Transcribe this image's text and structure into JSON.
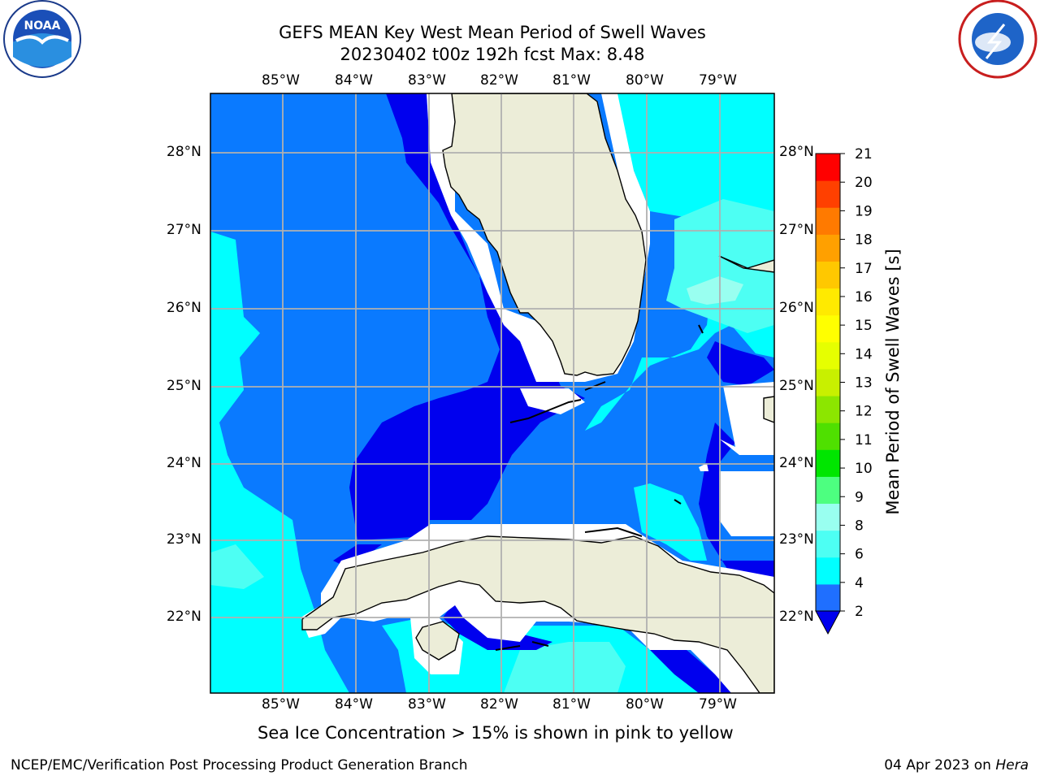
{
  "title_line1": "GEFS MEAN Key West Mean Period of Swell Waves",
  "title_line2": "20230402 t00z 192h fcst   Max: 8.48",
  "lon_labels": [
    "85°W",
    "84°W",
    "83°W",
    "82°W",
    "81°W",
    "80°W",
    "79°W"
  ],
  "lat_labels": [
    "28°N",
    "27°N",
    "26°N",
    "25°N",
    "24°N",
    "23°N",
    "22°N"
  ],
  "colorbar": {
    "label": "Mean Period of Swell Waves [s]",
    "ticks": [
      "21",
      "20",
      "19",
      "18",
      "17",
      "16",
      "15",
      "14",
      "13",
      "12",
      "11",
      "10",
      "9",
      "8",
      "6",
      "4",
      "2"
    ],
    "colors": [
      "#1f6fff",
      "#00ffff",
      "#4dfff3",
      "#99fff0",
      "#4dff80",
      "#00e600",
      "#4fe000",
      "#8ce600",
      "#c8f000",
      "#e6ff00",
      "#ffff00",
      "#ffea00",
      "#ffc800",
      "#ffa000",
      "#ff7a00",
      "#ff4000",
      "#ff0000"
    ]
  },
  "logos": {
    "left": "NOAA",
    "right": "NATIONAL WEATHER SERVICE"
  },
  "footer_note": "Sea Ice Concentration > 15% is shown in pink to yellow",
  "footer_left": "NCEP/EMC/Verification Post Processing Product Generation Branch",
  "footer_date": "04 Apr 2023 on",
  "footer_host": "Hera",
  "colors": {
    "c2_4": "#0a7aff",
    "c_lt2": "#0000ee",
    "c4_6": "#00ffff",
    "c6_8": "#4dfff3",
    "c8_9": "#99fff0",
    "land": "#ecedd8",
    "grid": "#b0b0b0"
  }
}
